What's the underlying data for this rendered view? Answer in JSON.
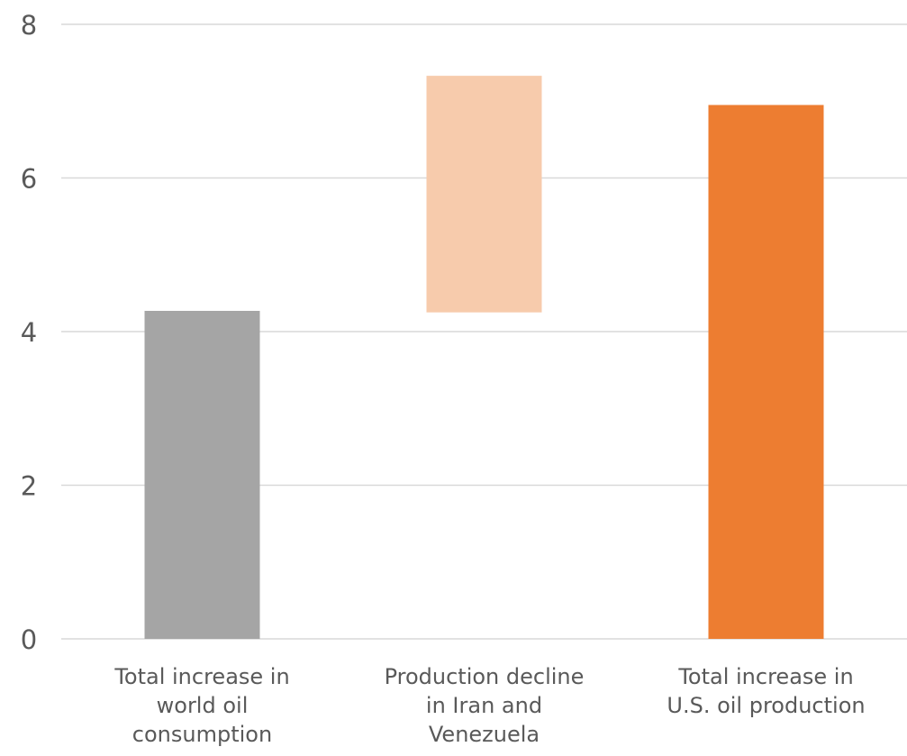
{
  "chart_data": {
    "type": "bar",
    "subtype": "floating-waterfall",
    "title": "",
    "xlabel": "",
    "ylabel": "",
    "ylim": [
      0,
      8
    ],
    "yticks": [
      0,
      2,
      4,
      6,
      8
    ],
    "grid": "horizontal",
    "legend": "none",
    "categories": [
      [
        "Total increase in",
        "world oil",
        "consumption"
      ],
      [
        "Production decline",
        "in Iran and",
        "Venezuela"
      ],
      [
        "Total increase in",
        "U.S. oil production"
      ]
    ],
    "bars": [
      {
        "base": 0,
        "top": 4.27,
        "color": "#a5a5a5"
      },
      {
        "base": 4.25,
        "top": 7.33,
        "color": "#f7cbac"
      },
      {
        "base": 0,
        "top": 6.95,
        "color": "#ed7d31"
      }
    ]
  },
  "style": {
    "grid_color": "#d9d9d9",
    "tick_label_color": "#595959",
    "category_label_color": "#595959"
  }
}
